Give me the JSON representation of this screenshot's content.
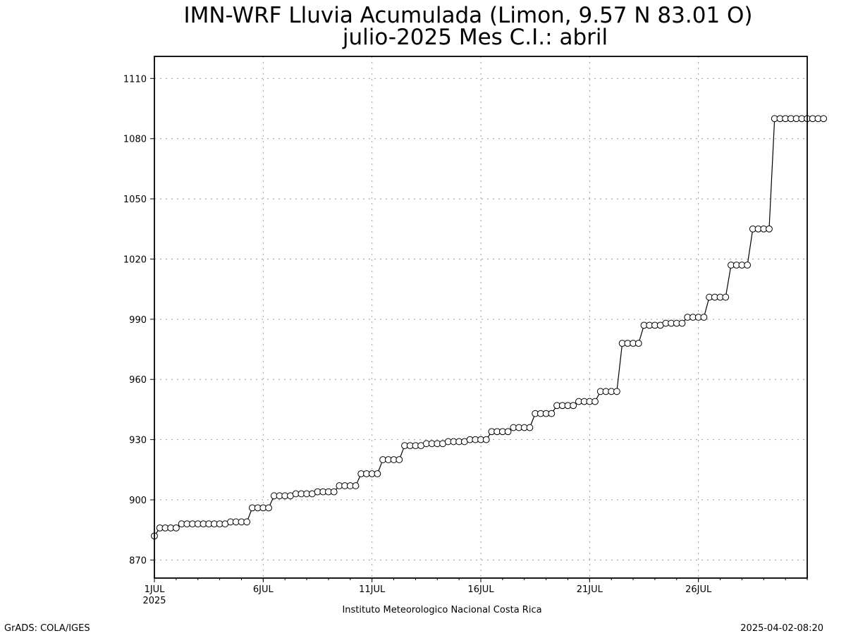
{
  "chart_data": {
    "type": "line",
    "title": "IMN-WRF  Lluvia Acumulada  (Limon, 9.57  N 83.01  O)",
    "subtitle": "julio-2025 Mes C.I.: abril",
    "xlabel": "Instituto Meteorologico Nacional Costa Rica",
    "ylabel": "",
    "x_unit": "days since 1 July 2025 00Z",
    "xlim": [
      0,
      30
    ],
    "ylim": [
      861,
      1121
    ],
    "y_ticks": [
      870,
      900,
      930,
      960,
      990,
      1020,
      1050,
      1080,
      1110
    ],
    "x_ticks": [
      {
        "value": 0,
        "label": "1JUL",
        "sublabel": "2025"
      },
      {
        "value": 5,
        "label": "6JUL",
        "sublabel": ""
      },
      {
        "value": 10,
        "label": "11JUL",
        "sublabel": ""
      },
      {
        "value": 15,
        "label": "16JUL",
        "sublabel": ""
      },
      {
        "value": 20,
        "label": "21JUL",
        "sublabel": ""
      },
      {
        "value": 25,
        "label": "26JUL",
        "sublabel": ""
      }
    ],
    "grid": true,
    "marker": "open-circle",
    "line_color": "#000000",
    "step_hours": 6,
    "values": [
      882,
      886,
      886,
      886,
      886,
      888,
      888,
      888,
      888,
      888,
      888,
      888,
      888,
      888,
      889,
      889,
      889,
      889,
      896,
      896,
      896,
      896,
      902,
      902,
      902,
      902,
      903,
      903,
      903,
      903,
      904,
      904,
      904,
      904,
      907,
      907,
      907,
      907,
      913,
      913,
      913,
      913,
      920,
      920,
      920,
      920,
      927,
      927,
      927,
      927,
      928,
      928,
      928,
      928,
      929,
      929,
      929,
      929,
      930,
      930,
      930,
      930,
      934,
      934,
      934,
      934,
      936,
      936,
      936,
      936,
      943,
      943,
      943,
      943,
      947,
      947,
      947,
      947,
      949,
      949,
      949,
      949,
      954,
      954,
      954,
      954,
      978,
      978,
      978,
      978,
      987,
      987,
      987,
      987,
      988,
      988,
      988,
      988,
      991,
      991,
      991,
      991,
      1001,
      1001,
      1001,
      1001,
      1017,
      1017,
      1017,
      1017,
      1035,
      1035,
      1035,
      1035,
      1090,
      1090,
      1090,
      1090,
      1090,
      1090,
      1090,
      1090,
      1090,
      1090
    ]
  },
  "footer": {
    "left": "GrADS: COLA/IGES",
    "right": "2025-04-02-08:20"
  }
}
